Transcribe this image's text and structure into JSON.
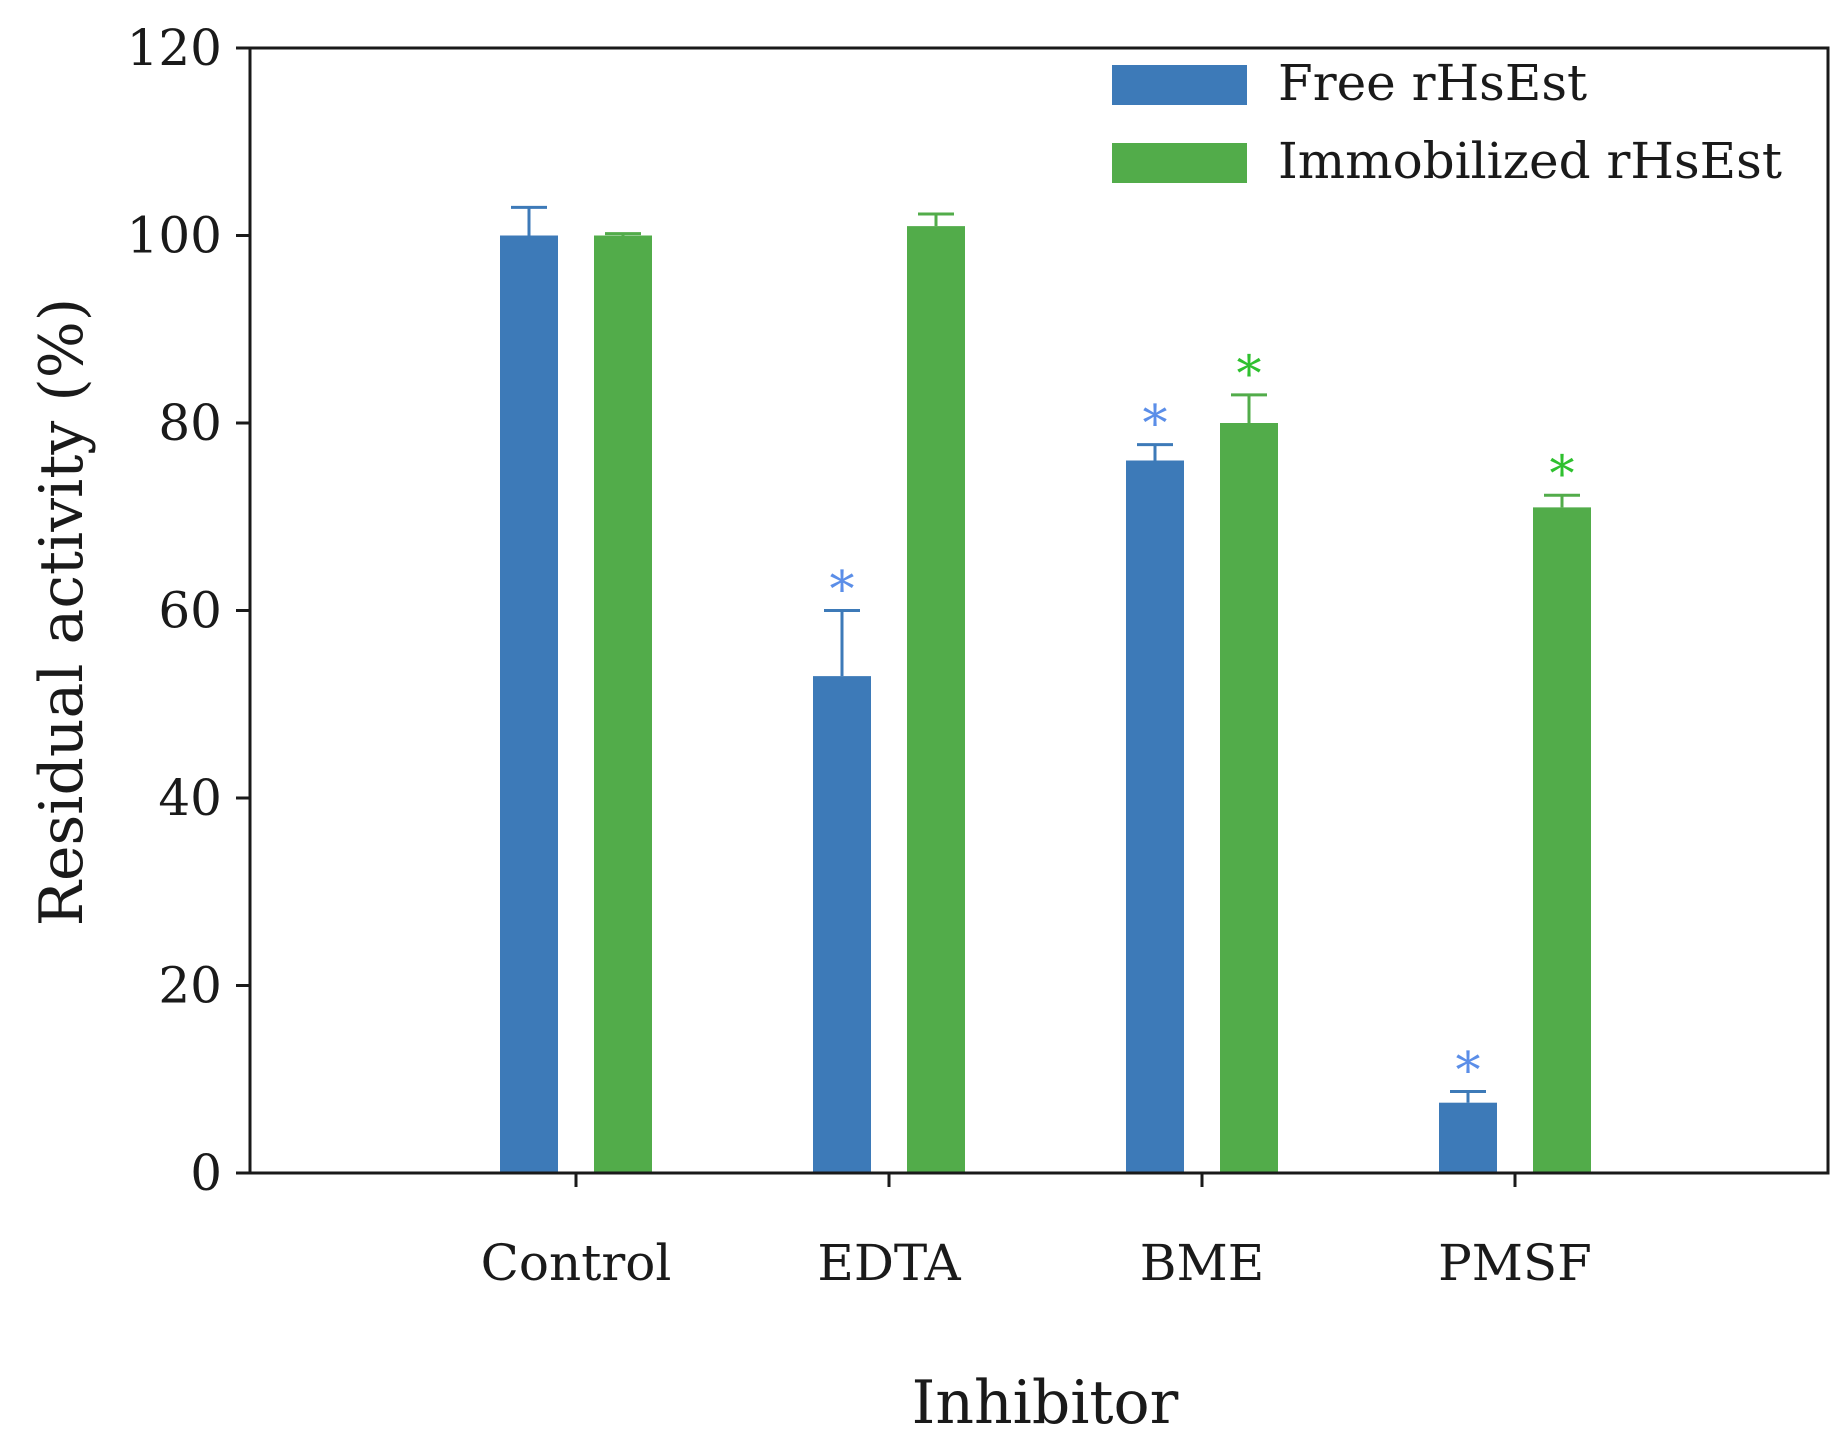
{
  "chart_data": {
    "type": "bar",
    "title": "",
    "xlabel": "Inhibitor",
    "ylabel": "Residual activity (%)",
    "ylim": [
      0,
      120
    ],
    "yticks": [
      0,
      20,
      40,
      60,
      80,
      100,
      120
    ],
    "categories": [
      "Control",
      "EDTA",
      "BME",
      "PMSF"
    ],
    "grid": false,
    "legend_position": "top-right",
    "series": [
      {
        "name": "Free rHsEst",
        "color": "#3d7ab8",
        "values": [
          100,
          53,
          76,
          7.5
        ],
        "errors": [
          3,
          7,
          1.7,
          1.2
        ],
        "significance": [
          "",
          "*",
          "*",
          "*"
        ],
        "significance_color": "#5b8ee8"
      },
      {
        "name": "Immobilized rHsEst",
        "color": "#52ac4a",
        "values": [
          100,
          101,
          80,
          71
        ],
        "errors": [
          0.2,
          1.3,
          3,
          1.3
        ],
        "significance": [
          "",
          "",
          "*",
          "*"
        ],
        "significance_color": "#2fc02f"
      }
    ]
  }
}
